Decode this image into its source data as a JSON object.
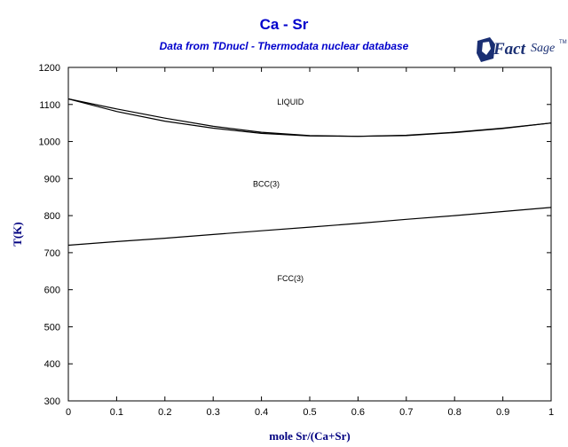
{
  "header": {
    "title": "Ca - Sr",
    "subtitle": "Data from TDnucl - Thermodata nuclear database",
    "logo_fact": "Fact",
    "logo_sage": "Sage",
    "logo_tm": "TM"
  },
  "colors": {
    "title": "#0000cc",
    "axis_title": "#000080",
    "lines": "#000000",
    "logo": "#1a2f73"
  },
  "chart_data": {
    "type": "line",
    "xlabel": "mole Sr/(Ca+Sr)",
    "ylabel": "T(K)",
    "xlim": [
      0,
      1
    ],
    "ylim": [
      300,
      1200
    ],
    "x_ticks": [
      0,
      0.1,
      0.2,
      0.3,
      0.4,
      0.5,
      0.6,
      0.7,
      0.8,
      0.9,
      1
    ],
    "x_tick_labels": [
      "0",
      "0.1",
      "0.2",
      "0.3",
      "0.4",
      "0.5",
      "0.6",
      "0.7",
      "0.8",
      "0.9",
      "1"
    ],
    "y_ticks": [
      300,
      400,
      500,
      600,
      700,
      800,
      900,
      1000,
      1100,
      1200
    ],
    "y_tick_labels": [
      "300",
      "400",
      "500",
      "600",
      "700",
      "800",
      "900",
      "1000",
      "1100",
      "1200"
    ],
    "grid": false,
    "series": [
      {
        "x": [
          0,
          0.1,
          0.2,
          0.3,
          0.4,
          0.5,
          0.6,
          0.7,
          0.8,
          0.9,
          1
        ],
        "y": [
          1115,
          1088,
          1063,
          1041,
          1025,
          1016,
          1014,
          1017,
          1025,
          1036,
          1050
        ]
      },
      {
        "x": [
          0,
          0.1,
          0.2,
          0.3,
          0.4,
          0.5,
          0.6,
          0.7,
          0.8,
          0.9,
          1
        ],
        "y": [
          1115,
          1081,
          1055,
          1036,
          1022,
          1015,
          1014,
          1016,
          1024,
          1035,
          1050
        ]
      },
      {
        "x": [
          0,
          0.1,
          0.2,
          0.3,
          0.4,
          0.5,
          0.6,
          0.7,
          0.8,
          0.9,
          1
        ],
        "y": [
          720,
          730,
          739,
          749,
          759,
          769,
          779,
          790,
          800,
          811,
          822
        ]
      }
    ],
    "annotations": [
      {
        "text": "LIQUID",
        "x": 0.46,
        "y": 1107
      },
      {
        "text": "BCC(3)",
        "x": 0.41,
        "y": 885
      },
      {
        "text": "FCC(3)",
        "x": 0.46,
        "y": 630
      }
    ]
  }
}
